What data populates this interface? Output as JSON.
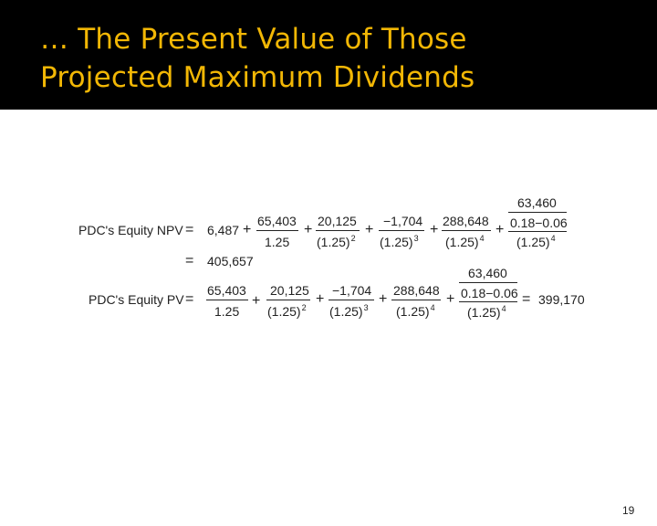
{
  "slide": {
    "title_line1": "… The Present Value of Those",
    "title_line2": "Projected Maximum Dividends",
    "page_number": "19"
  },
  "colors": {
    "title_bar": "#000000",
    "title_text": "#f2b705",
    "background": "#ffffff"
  },
  "npv_equation": {
    "label": "PDC's Equity NPV",
    "eq": "=",
    "constant": "6,487",
    "plus": "+",
    "terms": [
      {
        "numerator": "65,403",
        "denominator": "1.25",
        "exponent": ""
      },
      {
        "numerator": "20,125",
        "denominator": "(1.25)",
        "exponent": "2"
      },
      {
        "numerator": "−1,704",
        "denominator": "(1.25)",
        "exponent": "3"
      },
      {
        "numerator": "288,648",
        "denominator": "(1.25)",
        "exponent": "4"
      }
    ],
    "terminal": {
      "inner_numerator": "63,460",
      "inner_denominator": "0.18−0.06",
      "denominator": "(1.25)",
      "exponent": "4"
    },
    "result_eq": "=",
    "result": "405,657"
  },
  "pv_equation": {
    "label": "PDC's Equity PV",
    "eq": "=",
    "plus": "+",
    "terms": [
      {
        "numerator": "65,403",
        "denominator": "1.25",
        "exponent": ""
      },
      {
        "numerator": "20,125",
        "denominator": "(1.25)",
        "exponent": "2"
      },
      {
        "numerator": "−1,704",
        "denominator": "(1.25)",
        "exponent": "3"
      },
      {
        "numerator": "288,648",
        "denominator": "(1.25)",
        "exponent": "4"
      }
    ],
    "terminal": {
      "inner_numerator": "63,460",
      "inner_denominator": "0.18−0.06",
      "denominator": "(1.25)",
      "exponent": "4"
    },
    "result_eq": "=",
    "result": "399,170"
  }
}
